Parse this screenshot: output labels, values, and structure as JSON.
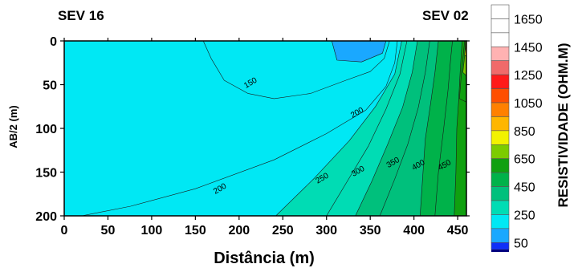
{
  "chart_data": {
    "type": "contour",
    "labels": {
      "left": "SEV 16",
      "right": "SEV 02"
    },
    "xlabel": "Distância (m)",
    "ylabel": "AB/2 (m)",
    "xlim": [
      0,
      460
    ],
    "ylim": [
      0,
      200
    ],
    "y_inverted": true,
    "x_ticks": [
      "0",
      "50",
      "100",
      "150",
      "200",
      "250",
      "300",
      "350",
      "400",
      "450"
    ],
    "y_ticks": [
      "0",
      "50",
      "100",
      "150",
      "200"
    ],
    "contour_labels": [
      {
        "text": "150",
        "x": 213,
        "y": 48
      },
      {
        "text": "200",
        "x": 335,
        "y": 82
      },
      {
        "text": "200",
        "x": 178,
        "y": 169
      },
      {
        "text": "250",
        "x": 295,
        "y": 157
      },
      {
        "text": "300",
        "x": 336,
        "y": 149
      },
      {
        "text": "350",
        "x": 376,
        "y": 139
      },
      {
        "text": "400",
        "x": 405,
        "y": 142
      },
      {
        "text": "450",
        "x": 435,
        "y": 142
      }
    ],
    "regions": [
      {
        "range": [
          100,
          150
        ],
        "points": [
          [
            306,
            0
          ],
          [
            312,
            22
          ],
          [
            340,
            24
          ],
          [
            364,
            14
          ],
          [
            368,
            0
          ]
        ]
      },
      {
        "range": [
          150,
          200
        ],
        "points": [
          [
            159,
            0
          ],
          [
            168,
            20
          ],
          [
            183,
            45
          ],
          [
            210,
            60
          ],
          [
            240,
            66
          ],
          [
            282,
            60
          ],
          [
            322,
            45
          ],
          [
            350,
            35
          ],
          [
            366,
            20
          ],
          [
            372,
            0
          ]
        ]
      },
      {
        "range": [
          200,
          250
        ],
        "points": [
          [
            0,
            200
          ],
          [
            20,
            200
          ],
          [
            76,
            189
          ],
          [
            150,
            169
          ],
          [
            240,
            136
          ],
          [
            300,
            106
          ],
          [
            345,
            79
          ],
          [
            368,
            52
          ],
          [
            378,
            25
          ],
          [
            381,
            0
          ],
          [
            460,
            0
          ],
          [
            460,
            200
          ]
        ]
      },
      {
        "range": [
          250,
          300
        ],
        "points": [
          [
            242,
            200
          ],
          [
            286,
            157
          ],
          [
            326,
            114
          ],
          [
            356,
            75
          ],
          [
            378,
            38
          ],
          [
            386,
            0
          ],
          [
            460,
            0
          ],
          [
            460,
            200
          ]
        ]
      },
      {
        "range": [
          300,
          350
        ],
        "points": [
          [
            300,
            200
          ],
          [
            324,
            160
          ],
          [
            348,
            120
          ],
          [
            368,
            78
          ],
          [
            384,
            38
          ],
          [
            392,
            0
          ],
          [
            460,
            0
          ],
          [
            460,
            200
          ]
        ]
      },
      {
        "range": [
          350,
          400
        ],
        "points": [
          [
            333,
            200
          ],
          [
            352,
            160
          ],
          [
            370,
            118
          ],
          [
            387,
            76
          ],
          [
            398,
            36
          ],
          [
            404,
            0
          ],
          [
            460,
            0
          ],
          [
            460,
            200
          ]
        ]
      },
      {
        "range": [
          400,
          450
        ],
        "points": [
          [
            361,
            200
          ],
          [
            378,
            158
          ],
          [
            393,
            118
          ],
          [
            405,
            76
          ],
          [
            413,
            36
          ],
          [
            418,
            0
          ],
          [
            460,
            0
          ],
          [
            460,
            200
          ]
        ]
      },
      {
        "range": [
          450,
          500
        ],
        "points": [
          [
            407,
            200
          ],
          [
            410,
            156
          ],
          [
            413,
            112
          ],
          [
            419,
            72
          ],
          [
            424,
            36
          ],
          [
            428,
            0
          ],
          [
            460,
            0
          ],
          [
            460,
            200
          ]
        ]
      },
      {
        "range": [
          500,
          550
        ],
        "points": [
          [
            424,
            200
          ],
          [
            428,
            150
          ],
          [
            434,
            100
          ],
          [
            439,
            56
          ],
          [
            442,
            20
          ],
          [
            444,
            0
          ],
          [
            460,
            0
          ],
          [
            460,
            200
          ]
        ]
      },
      {
        "range": [
          550,
          600
        ],
        "points": [
          [
            446,
            200
          ],
          [
            448,
            150
          ],
          [
            449,
            100
          ],
          [
            451,
            70
          ],
          [
            453,
            32
          ],
          [
            455,
            0
          ],
          [
            460,
            0
          ],
          [
            460,
            200
          ]
        ]
      },
      {
        "range": [
          600,
          650
        ],
        "points": [
          [
            452,
            66
          ],
          [
            454,
            40
          ],
          [
            456,
            20
          ],
          [
            458,
            0
          ],
          [
            460,
            0
          ],
          [
            460,
            70
          ]
        ]
      },
      {
        "range": [
          650,
          750
        ],
        "points": [
          [
            456,
            36
          ],
          [
            458,
            18
          ],
          [
            459,
            0
          ],
          [
            460,
            0
          ],
          [
            460,
            40
          ]
        ]
      },
      {
        "range": [
          750,
          850
        ],
        "points": [
          [
            458,
            16
          ],
          [
            459,
            8
          ],
          [
            459,
            0
          ],
          [
            460,
            0
          ],
          [
            460,
            18
          ]
        ]
      }
    ],
    "legend": {
      "title": "RESISTIVIDADE (OHM.M)",
      "labels": [
        "1650",
        "1450",
        "1250",
        "1050",
        "850",
        "650",
        "450",
        "250",
        "50"
      ],
      "bins": [
        {
          "range": [
            1650,
            1750
          ],
          "color": "#ffffff"
        },
        {
          "range": [
            1550,
            1650
          ],
          "color": "#ffffff"
        },
        {
          "range": [
            1450,
            1550
          ],
          "color": "#ffffff"
        },
        {
          "range": [
            1350,
            1450
          ],
          "color": "#ffb2b2"
        },
        {
          "range": [
            1250,
            1350
          ],
          "color": "#f06a6a"
        },
        {
          "range": [
            1150,
            1250
          ],
          "color": "#ff1a1a"
        },
        {
          "range": [
            1050,
            1150
          ],
          "color": "#ff4f00"
        },
        {
          "range": [
            950,
            1050
          ],
          "color": "#ff8000"
        },
        {
          "range": [
            850,
            950
          ],
          "color": "#ffb600"
        },
        {
          "range": [
            750,
            850
          ],
          "color": "#f2f200"
        },
        {
          "range": [
            650,
            750
          ],
          "color": "#7ccc00"
        },
        {
          "range": [
            550,
            650
          ],
          "color": "#10a010"
        },
        {
          "range": [
            450,
            550
          ],
          "color": "#00b24a"
        },
        {
          "range": [
            350,
            450
          ],
          "color": "#00c07c"
        },
        {
          "range": [
            250,
            350
          ],
          "color": "#00dcb4"
        },
        {
          "range": [
            150,
            250
          ],
          "color": "#00e8f4"
        },
        {
          "range": [
            50,
            150
          ],
          "color": "#1aa8ff"
        },
        {
          "range": [
            0,
            50
          ],
          "color": "#1030f8"
        }
      ],
      "bottom_color": "#000080"
    }
  }
}
